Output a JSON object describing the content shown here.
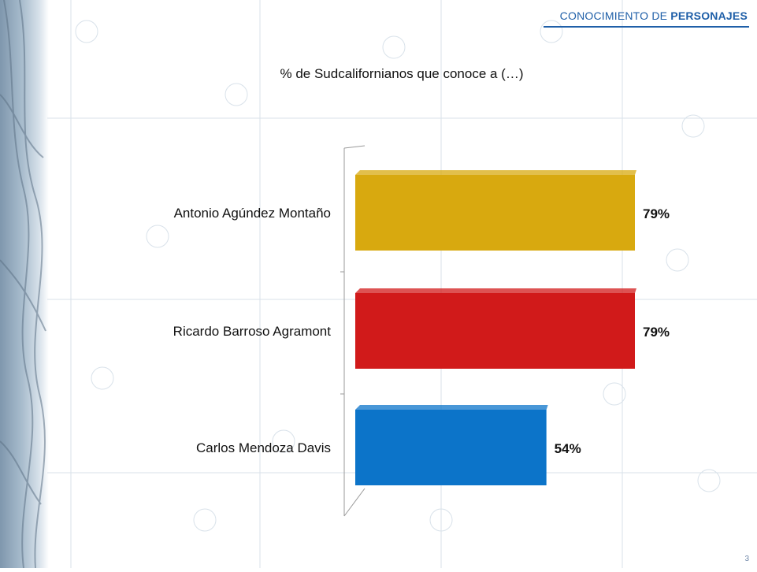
{
  "header": {
    "title_prefix": "CONOCIMIENTO DE",
    "title_bold": "PERSONAJES"
  },
  "slide_number": "3",
  "colors": {
    "accent": "#1f5fa8",
    "bar_1": "#d8a90f",
    "bar_2": "#d11a1a",
    "bar_3": "#0c74c9"
  },
  "chart_data": {
    "type": "bar",
    "orientation": "horizontal",
    "title": "% de Sudcalifornianos que conoce a (…)",
    "categories": [
      "Antonio Agúndez Montaño",
      "Ricardo Barroso Agramont",
      "Carlos Mendoza Davis"
    ],
    "values": [
      79,
      79,
      54
    ],
    "value_labels": [
      "79%",
      "79%",
      "54%"
    ],
    "xlim": [
      0,
      80
    ],
    "grid": false,
    "legend": "none"
  }
}
